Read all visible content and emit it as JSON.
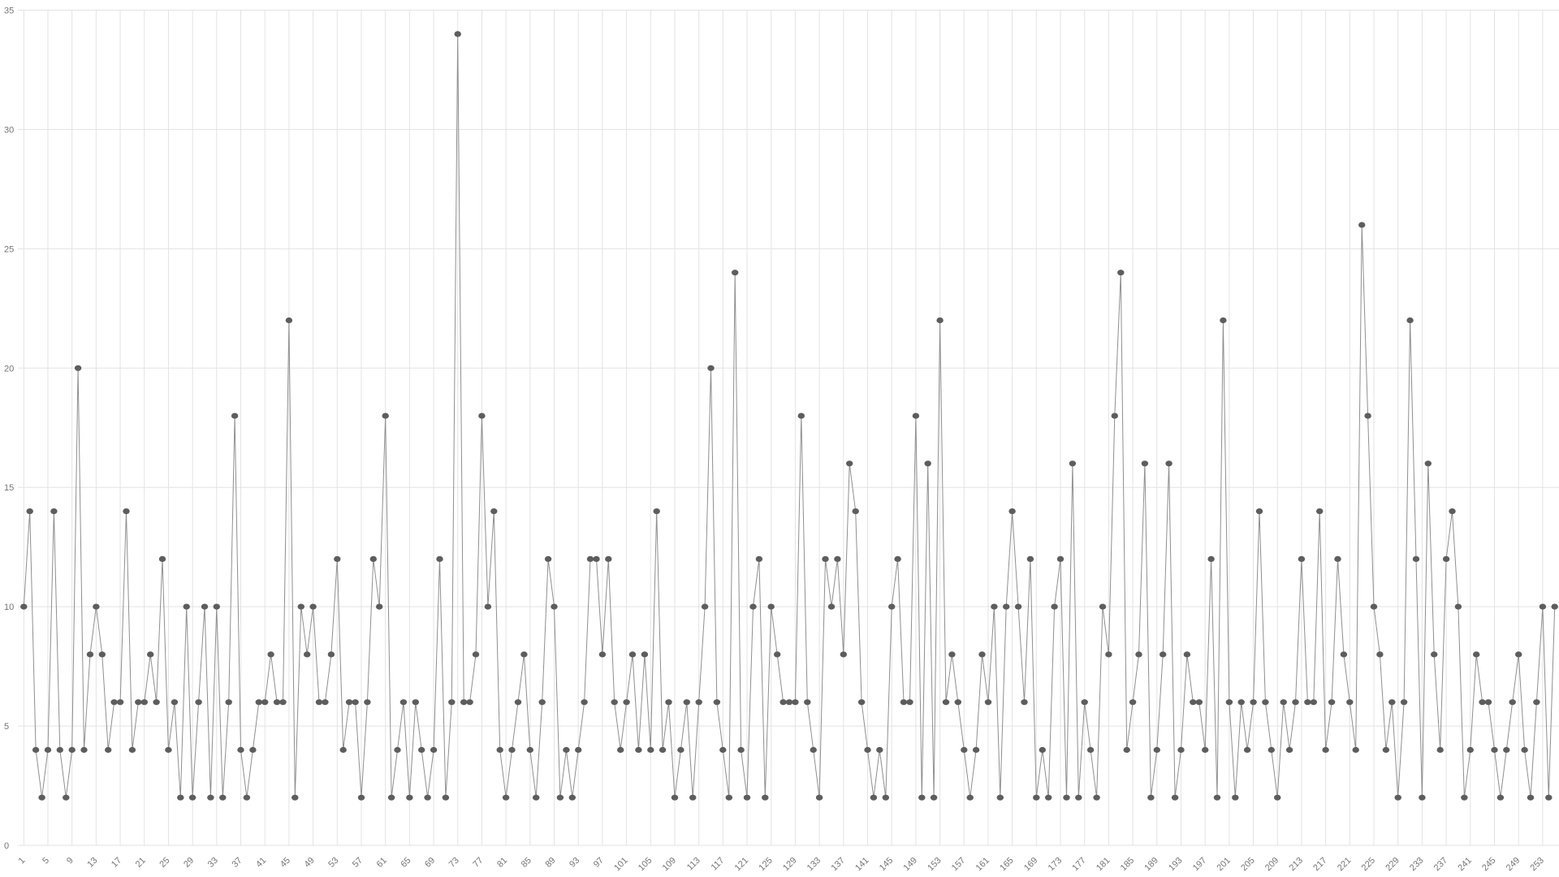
{
  "chart_data": {
    "type": "line",
    "title": "",
    "xlabel": "",
    "ylabel": "",
    "ylim": [
      0,
      35
    ],
    "y_ticks": [
      0,
      5,
      10,
      15,
      20,
      25,
      30,
      35
    ],
    "x_tick_labels": [
      "1",
      "5",
      "9",
      "13",
      "17",
      "21",
      "25",
      "29",
      "33",
      "37",
      "41",
      "45",
      "49",
      "53",
      "57",
      "61",
      "65",
      "69",
      "73",
      "77",
      "81",
      "85",
      "89",
      "93",
      "97",
      "101",
      "105",
      "109",
      "113",
      "117",
      "121",
      "125",
      "129",
      "133",
      "137",
      "141",
      "145",
      "149",
      "153",
      "157",
      "161",
      "165",
      "169",
      "173",
      "177",
      "181",
      "185",
      "189",
      "193",
      "197",
      "201",
      "205",
      "209",
      "213",
      "217",
      "221",
      "225",
      "229",
      "233",
      "237",
      "241",
      "245",
      "249",
      "253"
    ],
    "x_tick_step": 4,
    "x_start": 1,
    "grid": "both",
    "legend": "none",
    "values": [
      10,
      14,
      4,
      2,
      4,
      14,
      4,
      2,
      4,
      20,
      4,
      8,
      10,
      8,
      4,
      6,
      6,
      14,
      4,
      6,
      6,
      8,
      6,
      12,
      4,
      6,
      2,
      10,
      2,
      6,
      10,
      2,
      10,
      2,
      6,
      18,
      4,
      2,
      4,
      6,
      6,
      8,
      6,
      6,
      22,
      2,
      10,
      8,
      10,
      6,
      6,
      8,
      12,
      4,
      6,
      6,
      2,
      6,
      12,
      10,
      18,
      2,
      4,
      6,
      2,
      6,
      4,
      2,
      4,
      12,
      2,
      6,
      34,
      6,
      6,
      8,
      18,
      10,
      14,
      4,
      2,
      4,
      6,
      8,
      4,
      2,
      6,
      12,
      10,
      2,
      4,
      2,
      4,
      6,
      12,
      12,
      8,
      12,
      6,
      4,
      6,
      8,
      4,
      8,
      4,
      14,
      4,
      6,
      2,
      4,
      6,
      2,
      6,
      10,
      20,
      6,
      4,
      2,
      24,
      4,
      2,
      10,
      12,
      2,
      10,
      8,
      6,
      6,
      6,
      18,
      6,
      4,
      2,
      12,
      10,
      12,
      8,
      16,
      14,
      6,
      4,
      2,
      4,
      2,
      10,
      12,
      6,
      6,
      18,
      2,
      16,
      2,
      22,
      6,
      8,
      6,
      4,
      2,
      4,
      8,
      6,
      10,
      2,
      10,
      14,
      10,
      6,
      12,
      2,
      4,
      2,
      10,
      12,
      2,
      16,
      2,
      6,
      4,
      2,
      10,
      8,
      18,
      24,
      4,
      6,
      8,
      16,
      2,
      4,
      8,
      16,
      2,
      4,
      8,
      6,
      6,
      4,
      12,
      2,
      22,
      6,
      2,
      6,
      4,
      6,
      14,
      6,
      4,
      2,
      6,
      4,
      6,
      12,
      6,
      6,
      14,
      4,
      6,
      12,
      8,
      6,
      4,
      26,
      18,
      10,
      8,
      4,
      6,
      2,
      6,
      22,
      12,
      2,
      16,
      8,
      4,
      12,
      14,
      10,
      2,
      4,
      8,
      6,
      6,
      4,
      2,
      4,
      6,
      8,
      4,
      2,
      6,
      10,
      2,
      10
    ],
    "colors": {
      "line": "#8f8f8f",
      "marker": "#5d5d5d",
      "gridline": "#e3e3e3",
      "label": "#757575",
      "background": "#ffffff"
    }
  }
}
